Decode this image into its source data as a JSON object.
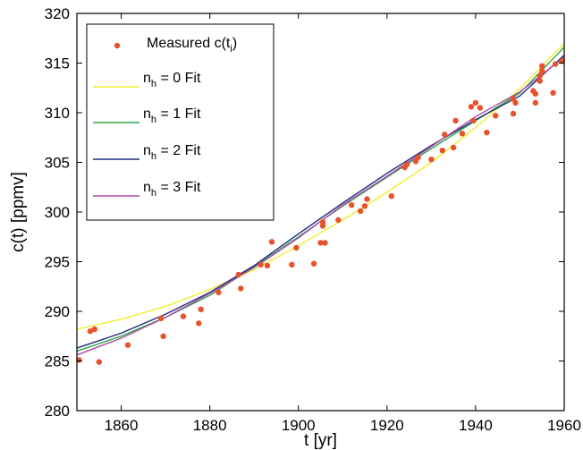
{
  "chart_data": {
    "type": "scatter",
    "xlabel": "t  [yr]",
    "ylabel": "c(t)  [ppmv]",
    "xlim": [
      1850,
      1960
    ],
    "ylim": [
      280,
      320
    ],
    "xticks": [
      "1860",
      "1880",
      "1900",
      "1920",
      "1940",
      "1960"
    ],
    "yticks": [
      "280",
      "285",
      "290",
      "295",
      "300",
      "305",
      "310",
      "315",
      "320"
    ],
    "grid": false,
    "legend_position": "top-left",
    "colors": {
      "measured": "#e8522a",
      "fit0": "#f2ee2a",
      "fit1": "#2ea84a",
      "fit2": "#1f2a7a",
      "fit3": "#b04aa8"
    },
    "legend": [
      {
        "key": "measured",
        "label_main": "Measured c(t",
        "label_sub": "i",
        "label_tail": ")"
      },
      {
        "key": "fit0",
        "label_main": "n",
        "label_sub": "h",
        "label_tail": " = 0 Fit"
      },
      {
        "key": "fit1",
        "label_main": "n",
        "label_sub": "h",
        "label_tail": " = 1 Fit"
      },
      {
        "key": "fit2",
        "label_main": "n",
        "label_sub": "h",
        "label_tail": " = 2 Fit"
      },
      {
        "key": "fit3",
        "label_main": "n",
        "label_sub": "h",
        "label_tail": " = 3 Fit"
      }
    ],
    "measured": [
      [
        1850.5,
        285.1
      ],
      [
        1853,
        288.0
      ],
      [
        1854,
        288.2
      ],
      [
        1855,
        284.9
      ],
      [
        1861.5,
        286.6
      ],
      [
        1869,
        289.3
      ],
      [
        1869.5,
        287.5
      ],
      [
        1874,
        289.5
      ],
      [
        1877.5,
        288.8
      ],
      [
        1878,
        290.2
      ],
      [
        1882,
        291.9
      ],
      [
        1886.5,
        293.7
      ],
      [
        1887,
        292.3
      ],
      [
        1891.5,
        294.7
      ],
      [
        1893,
        294.6
      ],
      [
        1894,
        297.0
      ],
      [
        1898.5,
        294.7
      ],
      [
        1899.5,
        296.4
      ],
      [
        1903.5,
        294.8
      ],
      [
        1905,
        296.9
      ],
      [
        1905.5,
        298.6
      ],
      [
        1905.5,
        299.0
      ],
      [
        1906,
        296.9
      ],
      [
        1909,
        299.2
      ],
      [
        1912,
        300.7
      ],
      [
        1914,
        300.1
      ],
      [
        1915,
        300.6
      ],
      [
        1915.5,
        301.3
      ],
      [
        1921,
        301.6
      ],
      [
        1924,
        304.5
      ],
      [
        1924.5,
        304.8
      ],
      [
        1926.5,
        305.1
      ],
      [
        1927,
        305.5
      ],
      [
        1930,
        305.3
      ],
      [
        1932.5,
        306.2
      ],
      [
        1933,
        307.8
      ],
      [
        1935,
        306.5
      ],
      [
        1935.5,
        309.2
      ],
      [
        1937,
        307.9
      ],
      [
        1939,
        310.6
      ],
      [
        1939.5,
        309.2
      ],
      [
        1940,
        311.0
      ],
      [
        1941,
        310.5
      ],
      [
        1942.5,
        308.0
      ],
      [
        1944.5,
        309.7
      ],
      [
        1948.5,
        311.4
      ],
      [
        1948.5,
        309.9
      ],
      [
        1949,
        311.0
      ],
      [
        1953,
        312.2
      ],
      [
        1953.5,
        311.9
      ],
      [
        1953.5,
        311.0
      ],
      [
        1954.5,
        313.2
      ],
      [
        1954.5,
        313.7
      ],
      [
        1955,
        314.2
      ],
      [
        1955,
        314.7
      ],
      [
        1957.5,
        312.0
      ],
      [
        1958,
        314.9
      ],
      [
        1959.5,
        315.2
      ]
    ],
    "fits": [
      {
        "key": "fit0",
        "x": [
          1850,
          1860,
          1870,
          1880,
          1890,
          1900,
          1910,
          1920,
          1930,
          1940,
          1950,
          1960
        ],
        "y": [
          288.2,
          289.2,
          290.5,
          292.2,
          294.2,
          296.6,
          299.2,
          302.0,
          305.0,
          308.5,
          312.4,
          317.0
        ]
      },
      {
        "key": "fit1",
        "x": [
          1850,
          1860,
          1870,
          1880,
          1890,
          1900,
          1910,
          1920,
          1930,
          1940,
          1950,
          1960
        ],
        "y": [
          286.0,
          287.5,
          289.4,
          291.6,
          294.5,
          297.5,
          300.6,
          303.5,
          306.4,
          309.2,
          312.0,
          316.6
        ]
      },
      {
        "key": "fit2",
        "x": [
          1850,
          1860,
          1870,
          1880,
          1890,
          1900,
          1910,
          1920,
          1930,
          1940,
          1950,
          1960
        ],
        "y": [
          286.3,
          287.8,
          289.7,
          291.9,
          294.6,
          297.8,
          300.9,
          303.9,
          306.7,
          309.3,
          311.7,
          315.8
        ]
      },
      {
        "key": "fit3",
        "x": [
          1850,
          1860,
          1870,
          1880,
          1890,
          1900,
          1910,
          1920,
          1930,
          1940,
          1950,
          1960
        ],
        "y": [
          285.6,
          287.3,
          289.4,
          291.8,
          294.4,
          297.4,
          300.7,
          303.6,
          306.6,
          309.6,
          312.1,
          315.6
        ]
      }
    ]
  }
}
